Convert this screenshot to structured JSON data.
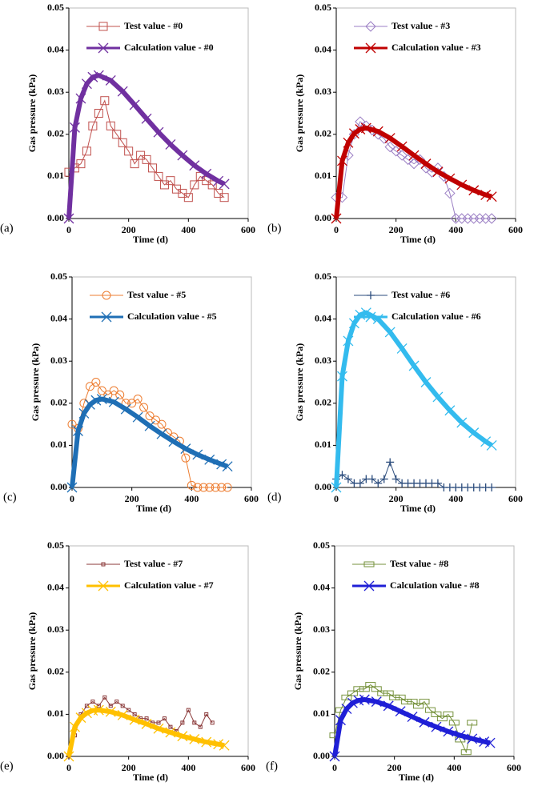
{
  "chart_data": [
    {
      "type": "line",
      "label": "(a)",
      "xlabel": "Time (d)",
      "ylabel": "Gas pressure (kPa)",
      "xlim": [
        0,
        600
      ],
      "xticks": [
        0,
        200,
        400,
        600
      ],
      "ylim": [
        0,
        0.05
      ],
      "yticks": [
        {
          "value": 0,
          "label": "0.00"
        },
        {
          "value": 0.01,
          "label": "0.01"
        },
        {
          "value": 0.02,
          "label": "0.02"
        },
        {
          "value": 0.03,
          "label": "0.03"
        },
        {
          "value": 0.04,
          "label": "0.04"
        },
        {
          "value": 0.05,
          "label": "0.05"
        }
      ],
      "series": [
        {
          "name": "Test value - #0",
          "color": "#c0504d",
          "marker": "square",
          "x": [
            0,
            20,
            40,
            60,
            80,
            100,
            120,
            140,
            160,
            180,
            200,
            220,
            240,
            260,
            280,
            300,
            320,
            340,
            360,
            380,
            400,
            420,
            440,
            460,
            480,
            500,
            520
          ],
          "values": [
            0.011,
            0.012,
            0.013,
            0.016,
            0.022,
            0.025,
            0.028,
            0.022,
            0.02,
            0.018,
            0.016,
            0.013,
            0.015,
            0.014,
            0.012,
            0.01,
            0.008,
            0.009,
            0.007,
            0.006,
            0.005,
            0.008,
            0.01,
            0.009,
            0.008,
            0.006,
            0.005
          ]
        },
        {
          "name": "Calculation value - #0",
          "color": "#7030a0",
          "marker": "x",
          "x": [
            0,
            20,
            40,
            60,
            80,
            100,
            140,
            180,
            220,
            260,
            300,
            340,
            380,
            420,
            460,
            500,
            520
          ],
          "values": [
            0,
            0.0216,
            0.0285,
            0.032,
            0.0336,
            0.034,
            0.0328,
            0.0302,
            0.027,
            0.0237,
            0.0205,
            0.0176,
            0.015,
            0.0126,
            0.0106,
            0.0089,
            0.0082
          ]
        }
      ]
    },
    {
      "type": "line",
      "label": "(b)",
      "xlabel": "Time (d)",
      "ylabel": "Gas pressure (kPa)",
      "xlim": [
        0,
        600
      ],
      "xticks": [
        0,
        200,
        400,
        600
      ],
      "ylim": [
        0,
        0.05
      ],
      "yticks": [
        {
          "value": 0,
          "label": "0.00"
        },
        {
          "value": 0.01,
          "label": "0.01"
        },
        {
          "value": 0.02,
          "label": "0.02"
        },
        {
          "value": 0.03,
          "label": "0.03"
        },
        {
          "value": 0.04,
          "label": "0.04"
        },
        {
          "value": 0.05,
          "label": "0.05"
        }
      ],
      "series": [
        {
          "name": "Test value - #3",
          "color": "#9b7fc4",
          "marker": "diamond",
          "x": [
            0,
            20,
            40,
            60,
            80,
            100,
            120,
            140,
            160,
            180,
            200,
            220,
            240,
            260,
            280,
            300,
            320,
            340,
            360,
            380,
            400,
            420,
            440,
            460,
            480,
            500,
            520
          ],
          "values": [
            0.005,
            0.005,
            0.015,
            0.02,
            0.023,
            0.022,
            0.021,
            0.02,
            0.019,
            0.017,
            0.016,
            0.015,
            0.014,
            0.013,
            0.014,
            0.012,
            0.011,
            0.012,
            0.01,
            0.006,
            0,
            0,
            0,
            0,
            0,
            0,
            0
          ]
        },
        {
          "name": "Calculation value - #3",
          "color": "#c00000",
          "marker": "x",
          "x": [
            0,
            20,
            40,
            60,
            80,
            100,
            140,
            180,
            220,
            260,
            300,
            340,
            380,
            420,
            460,
            500,
            520
          ],
          "values": [
            0,
            0.0137,
            0.018,
            0.0202,
            0.0212,
            0.0215,
            0.0207,
            0.0191,
            0.0171,
            0.015,
            0.013,
            0.0111,
            0.0095,
            0.008,
            0.0067,
            0.0056,
            0.0052
          ]
        }
      ]
    },
    {
      "type": "line",
      "label": "(c)",
      "xlabel": "Time (d)",
      "ylabel": "Gas pressure (kPa)",
      "xlim": [
        0,
        600
      ],
      "xticks": [
        0,
        200,
        400,
        600
      ],
      "ylim": [
        0,
        0.05
      ],
      "yticks": [
        {
          "value": 0,
          "label": "0.00"
        },
        {
          "value": 0.01,
          "label": "0.01"
        },
        {
          "value": 0.02,
          "label": "0.02"
        },
        {
          "value": 0.03,
          "label": "0.03"
        },
        {
          "value": 0.04,
          "label": "0.04"
        },
        {
          "value": 0.05,
          "label": "0.05"
        }
      ],
      "series": [
        {
          "name": "Test value - #5",
          "color": "#ed7d31",
          "marker": "circle",
          "x": [
            0,
            20,
            40,
            60,
            80,
            100,
            120,
            140,
            160,
            180,
            200,
            220,
            240,
            260,
            280,
            300,
            320,
            340,
            360,
            380,
            400,
            420,
            440,
            460,
            480,
            500,
            520
          ],
          "values": [
            0.015,
            0.014,
            0.02,
            0.024,
            0.025,
            0.023,
            0.022,
            0.023,
            0.022,
            0.02,
            0.02,
            0.021,
            0.019,
            0.017,
            0.016,
            0.015,
            0.013,
            0.012,
            0.011,
            0.007,
            0.0005,
            0,
            0,
            0,
            0,
            0,
            0
          ]
        },
        {
          "name": "Calculation value - #5",
          "color": "#1f6fb5",
          "marker": "x",
          "x": [
            0,
            20,
            40,
            60,
            80,
            100,
            140,
            180,
            220,
            260,
            300,
            340,
            380,
            420,
            460,
            500,
            520
          ],
          "values": [
            0,
            0.0134,
            0.0176,
            0.0197,
            0.0207,
            0.021,
            0.0203,
            0.0186,
            0.0167,
            0.0146,
            0.0127,
            0.0109,
            0.0092,
            0.0078,
            0.0066,
            0.0055,
            0.005
          ]
        }
      ]
    },
    {
      "type": "line",
      "label": "(d)",
      "xlabel": "Time (d)",
      "ylabel": "Gas pressure (kPa)",
      "xlim": [
        0,
        600
      ],
      "xticks": [
        0,
        200,
        400,
        600
      ],
      "ylim": [
        0,
        0.05
      ],
      "yticks": [
        {
          "value": 0,
          "label": "0.00"
        },
        {
          "value": 0.01,
          "label": "0.01"
        },
        {
          "value": 0.02,
          "label": "0.02"
        },
        {
          "value": 0.03,
          "label": "0.03"
        },
        {
          "value": 0.04,
          "label": "0.04"
        },
        {
          "value": 0.05,
          "label": "0.05"
        }
      ],
      "series": [
        {
          "name": "Test value - #6",
          "color": "#2a4b7c",
          "marker": "plus",
          "x": [
            0,
            20,
            40,
            60,
            80,
            100,
            120,
            140,
            160,
            180,
            200,
            220,
            240,
            260,
            280,
            300,
            320,
            340,
            360,
            380,
            400,
            420,
            440,
            460,
            480,
            500,
            520
          ],
          "values": [
            0.002,
            0.003,
            0.002,
            0.001,
            0.001,
            0.002,
            0.002,
            0.001,
            0.002,
            0.006,
            0.002,
            0.001,
            0.001,
            0.001,
            0.001,
            0.001,
            0.001,
            0.001,
            0,
            0,
            0,
            0,
            0,
            0,
            0,
            0,
            0
          ]
        },
        {
          "name": "Calculation value - #6",
          "color": "#33bbee",
          "marker": "x",
          "x": [
            0,
            20,
            40,
            60,
            80,
            100,
            140,
            180,
            220,
            260,
            300,
            340,
            380,
            420,
            460,
            500,
            520
          ],
          "values": [
            0,
            0.0264,
            0.0348,
            0.039,
            0.041,
            0.0415,
            0.04,
            0.0369,
            0.033,
            0.0289,
            0.025,
            0.0215,
            0.0183,
            0.0154,
            0.013,
            0.0109,
            0.01
          ]
        }
      ]
    },
    {
      "type": "line",
      "label": "(e)",
      "xlabel": "Time (d)",
      "ylabel": "Gas pressure (kPa)",
      "xlim": [
        0,
        600
      ],
      "xticks": [
        0,
        200,
        400,
        600
      ],
      "ylim": [
        0,
        0.05
      ],
      "yticks": [
        {
          "value": 0,
          "label": "0.00"
        },
        {
          "value": 0.01,
          "label": "0.01"
        },
        {
          "value": 0.02,
          "label": "0.02"
        },
        {
          "value": 0.03,
          "label": "0.03"
        },
        {
          "value": 0.04,
          "label": "0.04"
        },
        {
          "value": 0.05,
          "label": "0.05"
        }
      ],
      "series": [
        {
          "name": "Test value - #7",
          "color": "#8b3a3a",
          "marker": "smallsquare",
          "x": [
            0,
            20,
            40,
            60,
            80,
            100,
            120,
            140,
            160,
            180,
            200,
            220,
            240,
            260,
            280,
            300,
            320,
            340,
            360,
            380,
            400,
            420,
            440,
            460,
            480
          ],
          "values": [
            0,
            0.005,
            0.01,
            0.012,
            0.013,
            0.012,
            0.014,
            0.012,
            0.013,
            0.012,
            0.011,
            0.01,
            0.009,
            0.009,
            0.008,
            0.008,
            0.009,
            0.007,
            0.006,
            0.008,
            0.011,
            0.008,
            0.007,
            0.01,
            0.008
          ]
        },
        {
          "name": "Calculation value - #7",
          "color": "#ffc000",
          "marker": "x",
          "x": [
            0,
            20,
            40,
            60,
            80,
            100,
            140,
            180,
            220,
            260,
            300,
            340,
            380,
            420,
            460,
            500,
            520
          ],
          "values": [
            0,
            0.007,
            0.0092,
            0.0103,
            0.0109,
            0.011,
            0.0106,
            0.0098,
            0.0087,
            0.0077,
            0.0066,
            0.0057,
            0.0048,
            0.0041,
            0.0034,
            0.0029,
            0.0026
          ]
        }
      ]
    },
    {
      "type": "line",
      "label": "(f)",
      "xlabel": "Time (d)",
      "ylabel": "Gas pressure (kPa)",
      "xlim": [
        0,
        600
      ],
      "xticks": [
        0,
        200,
        400,
        600
      ],
      "ylim": [
        0,
        0.05
      ],
      "yticks": [
        {
          "value": 0,
          "label": "0.00"
        },
        {
          "value": 0.01,
          "label": "0.01"
        },
        {
          "value": 0.02,
          "label": "0.02"
        },
        {
          "value": 0.03,
          "label": "0.03"
        },
        {
          "value": 0.04,
          "label": "0.04"
        },
        {
          "value": 0.05,
          "label": "0.05"
        }
      ],
      "series": [
        {
          "name": "Test value - #8",
          "color": "#76923c",
          "marker": "dash",
          "x": [
            0,
            20,
            40,
            60,
            80,
            100,
            120,
            140,
            160,
            180,
            200,
            220,
            240,
            260,
            280,
            300,
            320,
            340,
            360,
            380,
            400,
            420,
            440,
            460
          ],
          "values": [
            0.005,
            0.011,
            0.014,
            0.015,
            0.016,
            0.016,
            0.017,
            0.016,
            0.015,
            0.015,
            0.014,
            0.014,
            0.013,
            0.013,
            0.012,
            0.013,
            0.011,
            0.01,
            0.009,
            0.01,
            0.008,
            0.004,
            0.001,
            0.008
          ]
        },
        {
          "name": "Calculation value - #8",
          "color": "#1f1fd6",
          "marker": "x",
          "x": [
            0,
            20,
            40,
            60,
            80,
            100,
            140,
            180,
            220,
            260,
            300,
            340,
            380,
            420,
            460,
            500,
            520
          ],
          "values": [
            0,
            0.0086,
            0.0113,
            0.0127,
            0.0133,
            0.0135,
            0.013,
            0.012,
            0.0107,
            0.0094,
            0.0081,
            0.007,
            0.0059,
            0.005,
            0.0042,
            0.0035,
            0.0032
          ]
        }
      ]
    }
  ]
}
